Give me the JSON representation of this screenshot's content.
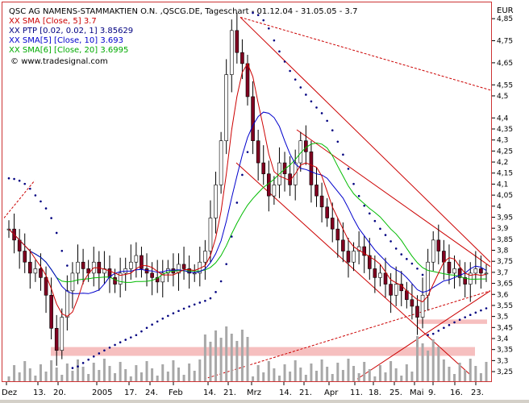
{
  "chart_data": {
    "type": "line",
    "title": "QSC AG NAMENS-STAMMAKTIEN O.N. ,QSCG.DE, Tageschart - 01.12.04 - 31.05.05 - 3.7",
    "currency": "EUR",
    "ylim": [
      3.21,
      4.92
    ],
    "grid": false,
    "legend_position": "top-left",
    "legend": [
      {
        "text": "XX SMA [Close, 5] 3.7",
        "color": "#cc0000"
      },
      {
        "text": "XX PTP [0.02, 0.02, 1] 3.85629",
        "color": "#000080"
      },
      {
        "text": "XX SMA[5] [Close, 10] 3.693",
        "color": "#0000cc"
      },
      {
        "text": "XX SMA[6] [Close, 20] 3.6995",
        "color": "#00aa00"
      }
    ],
    "watermark": "www.tradesignal.com",
    "y_ticks": [
      "4,85",
      "4,75",
      "4,65",
      "4,55",
      "4,5",
      "4,4",
      "4,35",
      "4,3",
      "4,25",
      "4,2",
      "4,15",
      "4,1",
      "4,05",
      "4",
      "3,95",
      "3,9",
      "3,85",
      "3,8",
      "3,75",
      "3,7",
      "3,65",
      "3,6",
      "3,55",
      "3,5",
      "3,45",
      "3,4",
      "3,35",
      "3,3",
      "3,25"
    ],
    "y_tick_values": [
      4.85,
      4.75,
      4.65,
      4.55,
      4.5,
      4.4,
      4.35,
      4.3,
      4.25,
      4.2,
      4.15,
      4.1,
      4.05,
      4.0,
      3.95,
      3.9,
      3.85,
      3.8,
      3.75,
      3.7,
      3.65,
      3.6,
      3.55,
      3.5,
      3.45,
      3.4,
      3.35,
      3.3,
      3.25
    ],
    "x_ticks": [
      "Dez",
      "13.",
      "20.",
      "2005",
      "17.",
      "24.",
      "Feb",
      "14.",
      "21.",
      "Mrz",
      "14.",
      "21.",
      "Apr",
      "11.",
      "18.",
      "25.",
      "Mai",
      "9.",
      "16.",
      "23."
    ],
    "last_price": 3.7,
    "series": [
      {
        "name": "Close",
        "values": [
          3.9,
          3.85,
          3.8,
          3.75,
          3.7,
          3.72,
          3.68,
          3.6,
          3.45,
          3.35,
          3.5,
          3.62,
          3.7,
          3.75,
          3.72,
          3.7,
          3.75,
          3.7,
          3.72,
          3.68,
          3.65,
          3.7,
          3.72,
          3.75,
          3.78,
          3.72,
          3.7,
          3.68,
          3.66,
          3.7,
          3.72,
          3.7,
          3.74,
          3.72,
          3.7,
          3.7,
          3.75,
          3.8,
          3.95,
          4.1,
          4.3,
          4.6,
          4.8,
          4.7,
          4.65,
          4.5,
          4.3,
          4.2,
          4.15,
          4.05,
          4.1,
          4.2,
          4.15,
          4.1,
          4.2,
          4.3,
          4.25,
          4.1,
          4.05,
          4.0,
          3.95,
          3.9,
          3.85,
          3.8,
          3.75,
          3.8,
          3.82,
          3.78,
          3.72,
          3.68,
          3.7,
          3.65,
          3.6,
          3.65,
          3.62,
          3.58,
          3.55,
          3.5,
          3.6,
          3.75,
          3.85,
          3.8,
          3.75,
          3.7,
          3.72,
          3.68,
          3.65,
          3.7,
          3.72,
          3.7,
          3.7
        ]
      }
    ]
  }
}
